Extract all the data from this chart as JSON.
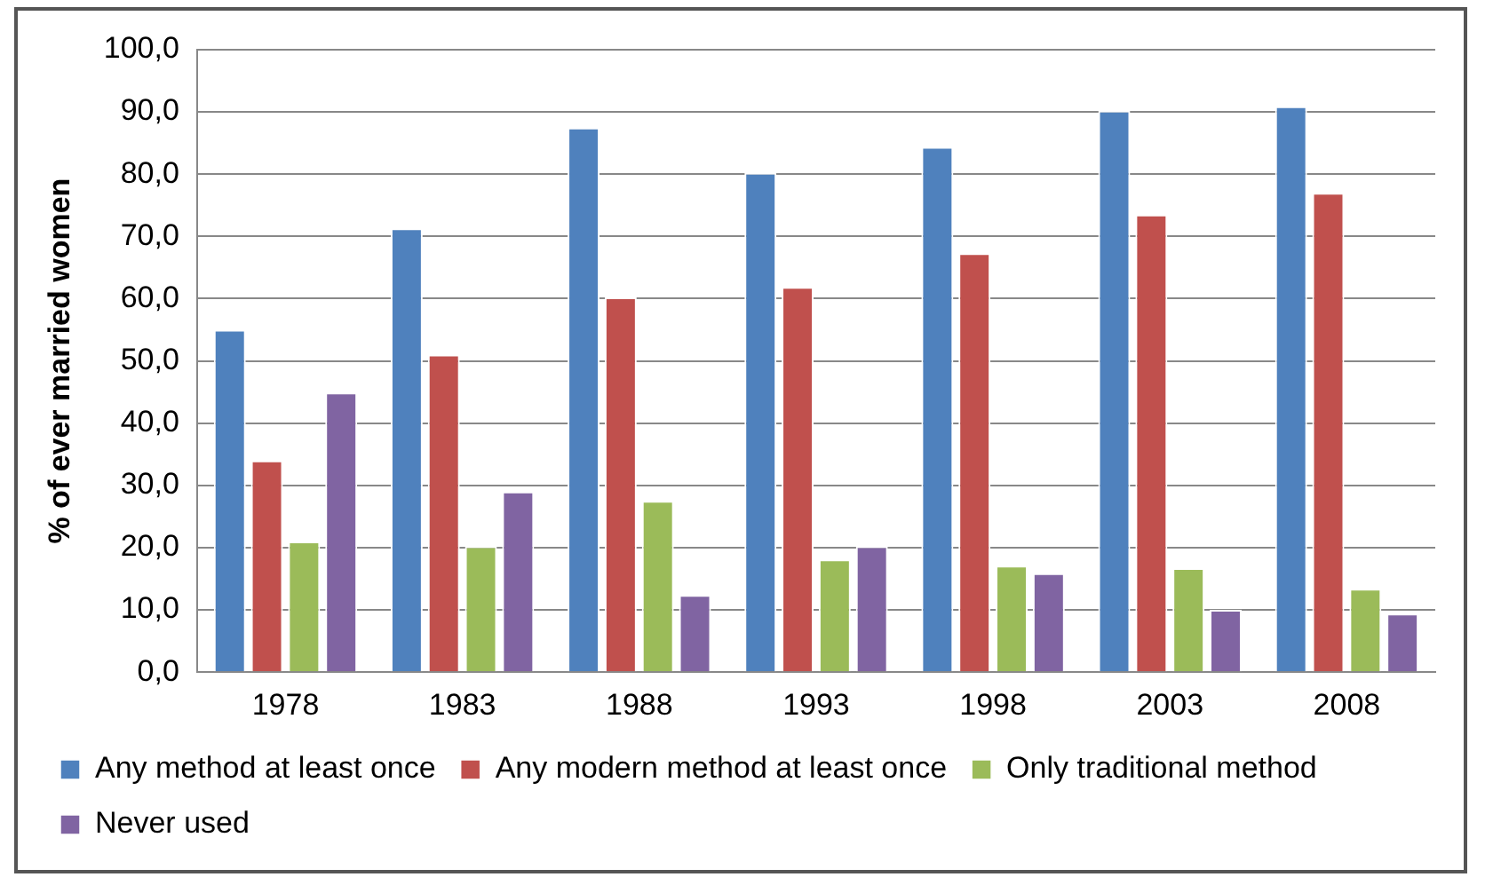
{
  "chart_data": {
    "type": "bar",
    "ylabel": "% of ever married women",
    "categories": [
      "1978",
      "1983",
      "1988",
      "1993",
      "1998",
      "2003",
      "2008"
    ],
    "series": [
      {
        "name": "Any method at least once",
        "color": "#4f81bd",
        "values": [
          55.0,
          71.3,
          87.5,
          80.2,
          84.4,
          90.2,
          90.9
        ]
      },
      {
        "name": "Any modern method at least once",
        "color": "#c0504d",
        "values": [
          34.0,
          51.0,
          60.2,
          61.9,
          67.3,
          73.5,
          77.0
        ]
      },
      {
        "name": "Only traditional method",
        "color": "#9bbb59",
        "values": [
          21.0,
          20.2,
          27.5,
          18.1,
          17.1,
          16.7,
          13.4
        ]
      },
      {
        "name": "Never used",
        "color": "#8064a2",
        "values": [
          44.9,
          29.0,
          12.4,
          20.2,
          15.9,
          10.0,
          9.4
        ]
      }
    ],
    "ylim": [
      0,
      100
    ],
    "yticks": [
      {
        "value": 0,
        "label": "0,0"
      },
      {
        "value": 10,
        "label": "10,0"
      },
      {
        "value": 20,
        "label": "20,0"
      },
      {
        "value": 30,
        "label": "30,0"
      },
      {
        "value": 40,
        "label": "40,0"
      },
      {
        "value": 50,
        "label": "50,0"
      },
      {
        "value": 60,
        "label": "60,0"
      },
      {
        "value": 70,
        "label": "70,0"
      },
      {
        "value": 80,
        "label": "80,0"
      },
      {
        "value": 90,
        "label": "90,0"
      },
      {
        "value": 100,
        "label": "100,0"
      }
    ],
    "grid": "y",
    "legend": "bottom"
  }
}
